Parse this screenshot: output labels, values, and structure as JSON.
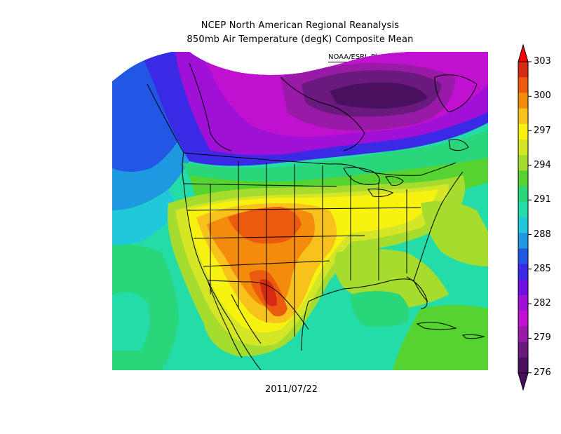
{
  "title_line1": "NCEP North American Regional Reanalysis",
  "title_line2": "850mb Air Temperature (degK) Composite Mean",
  "credit": "NOAA/ESRL Physical Sciences Division",
  "date": "2011/07/22",
  "colorbar": {
    "ticks": [
      "303",
      "300",
      "297",
      "294",
      "291",
      "288",
      "285",
      "282",
      "279",
      "276"
    ],
    "colors": [
      "#d62a12",
      "#ec5a10",
      "#f58b0d",
      "#f7c21b",
      "#f7f20f",
      "#d4e626",
      "#a5dc2e",
      "#55d331",
      "#2ad67a",
      "#24dca8",
      "#20c8dc",
      "#1e98e0",
      "#2256e4",
      "#3a2ae6",
      "#7010e0",
      "#a010d6",
      "#c010d0",
      "#9a1aa8",
      "#6a1a7e",
      "#4a1060"
    ]
  }
}
